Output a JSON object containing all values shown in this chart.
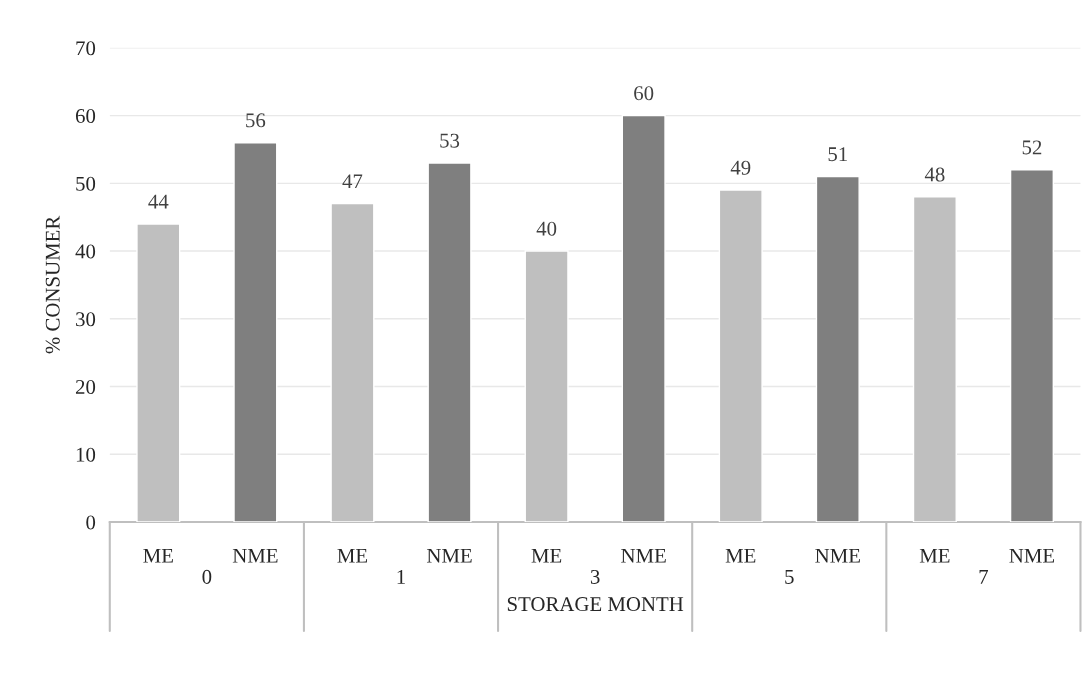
{
  "chart_data": {
    "type": "bar",
    "xlabel": "STORAGE MONTH",
    "ylabel": "% CONSUMER",
    "categories": [
      "0",
      "1",
      "3",
      "5",
      "7"
    ],
    "series": [
      {
        "name": "ME",
        "color": "#bfbfbf",
        "values": [
          44,
          47,
          40,
          49,
          48
        ]
      },
      {
        "name": "NME",
        "color": "#7f7f7f",
        "values": [
          56,
          53,
          60,
          51,
          52
        ]
      }
    ],
    "ylim": [
      0,
      70
    ],
    "yticks": [
      0,
      10,
      20,
      30,
      40,
      50,
      60,
      70
    ],
    "grid": "y",
    "data_labels": true
  }
}
